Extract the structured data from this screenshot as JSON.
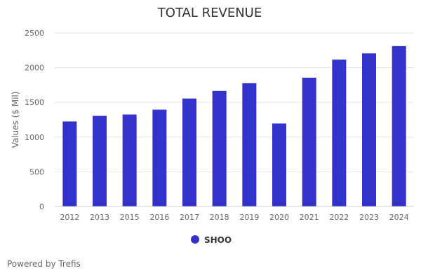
{
  "chart_data": {
    "type": "bar",
    "title": "TOTAL REVENUE",
    "ylabel": "Values ($ Mil)",
    "xlabel": "",
    "ylim": [
      0,
      2500
    ],
    "yticks": [
      0,
      500,
      1000,
      1500,
      2000,
      2500
    ],
    "categories": [
      "2012",
      "2013",
      "2015",
      "2016",
      "2017",
      "2018",
      "2019",
      "2020",
      "2021",
      "2022",
      "2023",
      "2024"
    ],
    "series": [
      {
        "name": "SHOO",
        "color": "#3333cc",
        "values": [
          1225,
          1305,
          1325,
          1395,
          1555,
          1665,
          1775,
          1195,
          1855,
          2115,
          2205,
          2310
        ]
      }
    ],
    "grid": true,
    "legend_position": "bottom-center"
  },
  "footer": {
    "credit": "Powered by Trefis"
  }
}
